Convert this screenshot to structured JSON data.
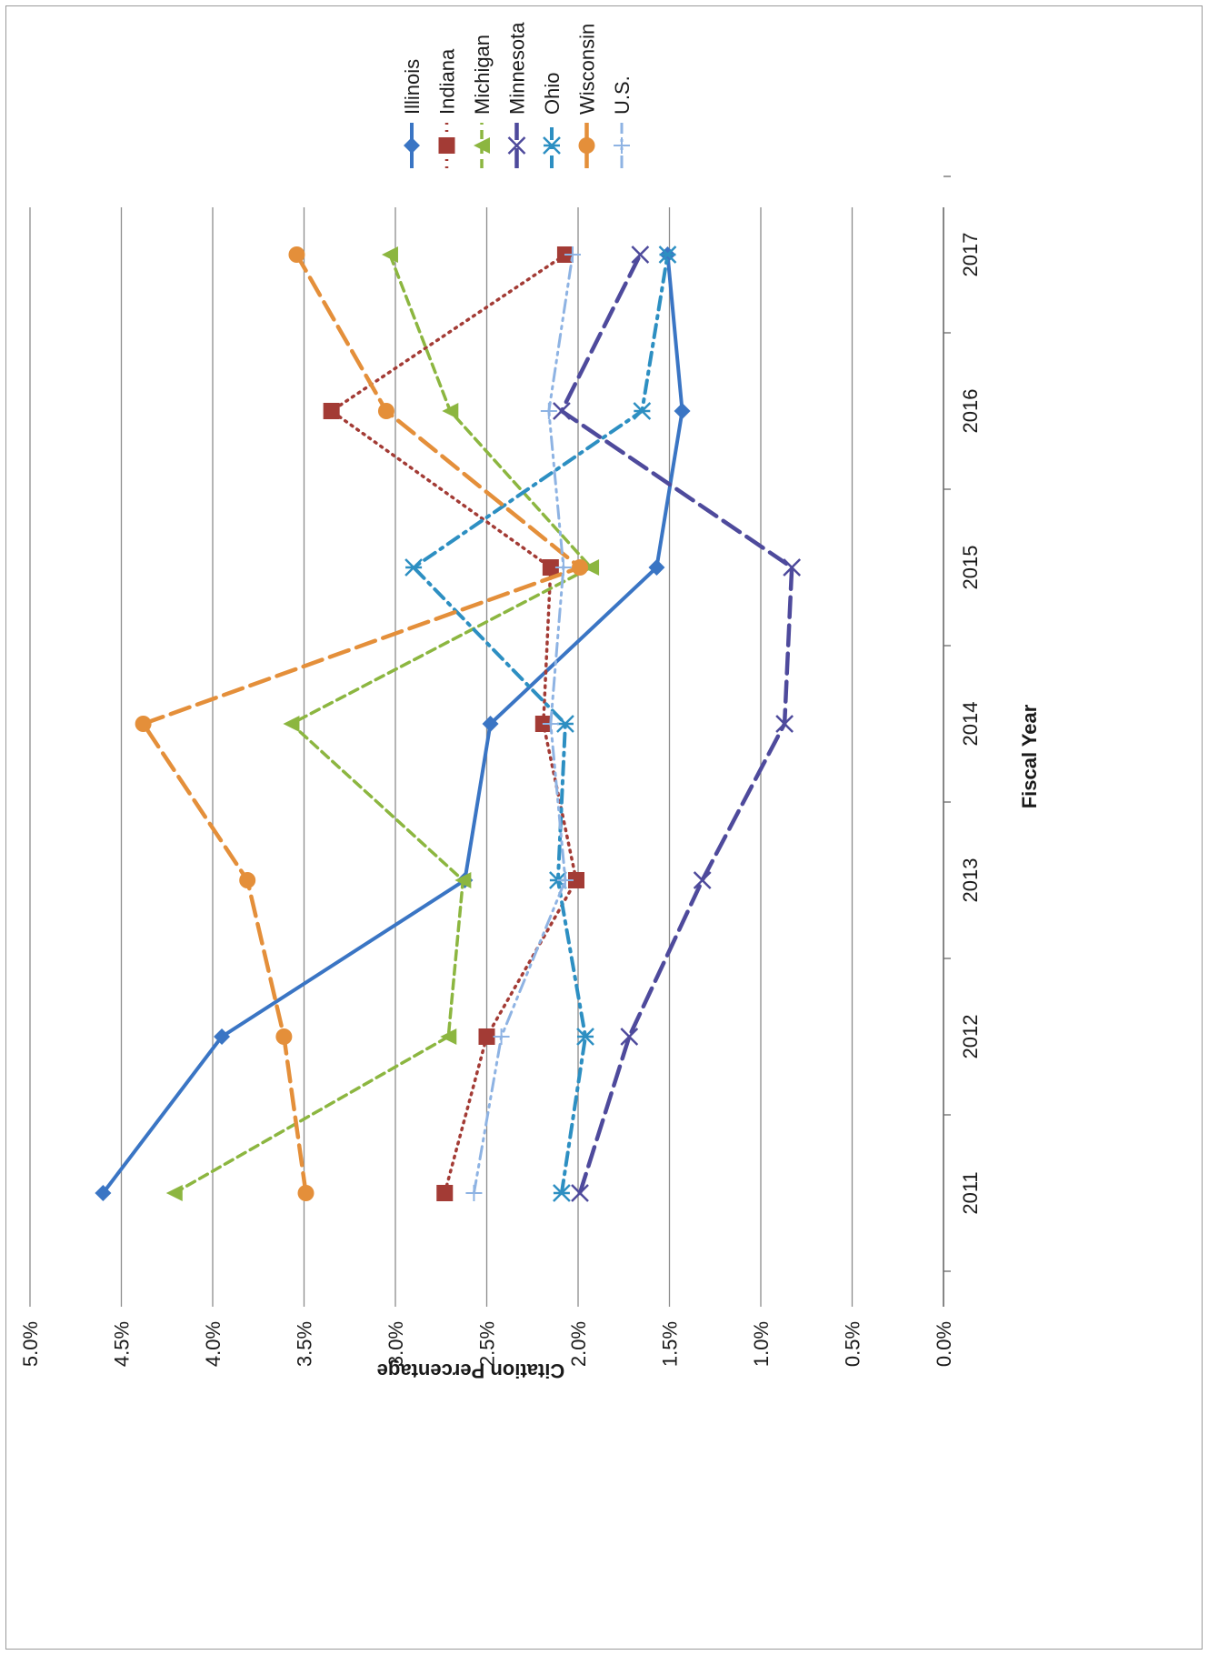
{
  "chart_data": {
    "type": "line",
    "xlabel": "Fiscal Year",
    "ylabel": "Citation Percentage",
    "categories": [
      "2011",
      "2012",
      "2013",
      "2014",
      "2015",
      "2016",
      "2017"
    ],
    "ylim": [
      0,
      0.05
    ],
    "yticks": [
      "0.0%",
      "0.5%",
      "1.0%",
      "1.5%",
      "2.0%",
      "2.5%",
      "3.0%",
      "3.5%",
      "4.0%",
      "4.5%",
      "5.0%"
    ],
    "grid": true,
    "legend_position": "top-right",
    "orientation": "rotated 90 degrees counter-clockwise",
    "series": [
      {
        "name": "Illinois",
        "color": "#3a75c4",
        "marker": "diamond",
        "dash": "solid",
        "values": [
          0.046,
          0.0395,
          0.0262,
          0.0248,
          0.0157,
          0.0143,
          0.0151
        ]
      },
      {
        "name": "Indiana",
        "color": "#a33b35",
        "marker": "square",
        "dash": "dotted",
        "values": [
          0.0273,
          0.025,
          0.0201,
          0.0219,
          0.0215,
          0.0335,
          0.0207
        ]
      },
      {
        "name": "Michigan",
        "color": "#8cb640",
        "marker": "triangle",
        "dash": "dashed",
        "values": [
          0.0421,
          0.0271,
          0.0263,
          0.0357,
          0.0193,
          0.027,
          0.0303
        ]
      },
      {
        "name": "Minnesota",
        "color": "#4e4a9c",
        "marker": "x",
        "dash": "longdash",
        "values": [
          0.0199,
          0.0172,
          0.0132,
          0.0087,
          0.0083,
          0.0209,
          0.0166
        ]
      },
      {
        "name": "Ohio",
        "color": "#2d8fc2",
        "marker": "asterisk",
        "dash": "dashdot",
        "values": [
          0.0209,
          0.0196,
          0.0211,
          0.0207,
          0.029,
          0.0165,
          0.0151
        ]
      },
      {
        "name": "Wisconsin",
        "color": "#e48f3a",
        "marker": "circle",
        "dash": "longdash",
        "values": [
          0.0349,
          0.0361,
          0.0381,
          0.0438,
          0.0199,
          0.0305,
          0.0354
        ]
      },
      {
        "name": "U.S.",
        "color": "#8eb3e3",
        "marker": "plus",
        "dash": "dashdotdot",
        "values": [
          0.0257,
          0.0242,
          0.0207,
          0.0215,
          0.0208,
          0.0216,
          0.0203
        ]
      }
    ]
  }
}
